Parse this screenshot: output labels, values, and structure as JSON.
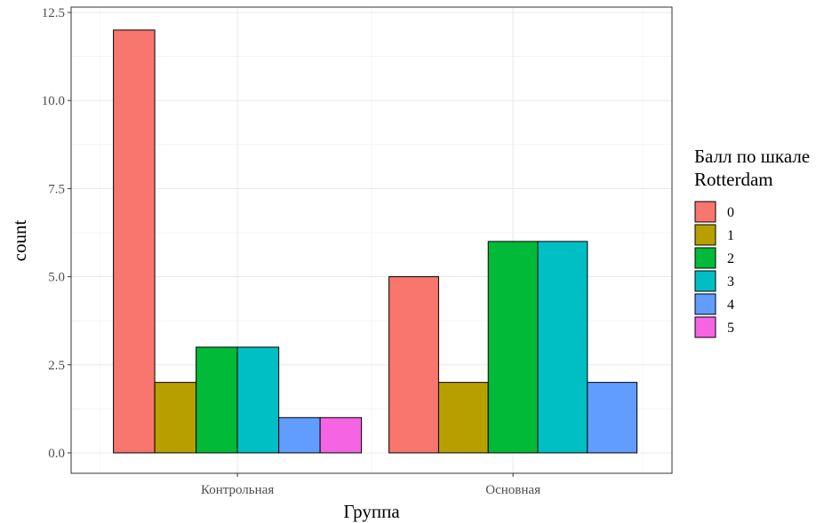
{
  "chart_data": {
    "type": "bar",
    "xlabel": "Группа",
    "ylabel": "count",
    "categories": [
      "Контрольная",
      "Основная"
    ],
    "ylim": [
      0,
      12.5
    ],
    "yticks": [
      "0.0",
      "2.5",
      "5.0",
      "7.5",
      "10.0",
      "12.5"
    ],
    "grid": true,
    "legend": {
      "title": "Балл по шкале Rotterdam",
      "title_lines": [
        "Балл по шкале",
        "Rotterdam"
      ],
      "position": "right"
    },
    "series": [
      {
        "name": "0",
        "color": "#F8766D",
        "values": [
          12,
          5
        ]
      },
      {
        "name": "1",
        "color": "#B79F00",
        "values": [
          2,
          2
        ]
      },
      {
        "name": "2",
        "color": "#00BA38",
        "values": [
          3,
          6
        ]
      },
      {
        "name": "3",
        "color": "#00BFC4",
        "values": [
          3,
          6
        ]
      },
      {
        "name": "4",
        "color": "#619CFF",
        "values": [
          1,
          2
        ]
      },
      {
        "name": "5",
        "color": "#F564E3",
        "values": [
          1,
          0
        ]
      }
    ]
  }
}
